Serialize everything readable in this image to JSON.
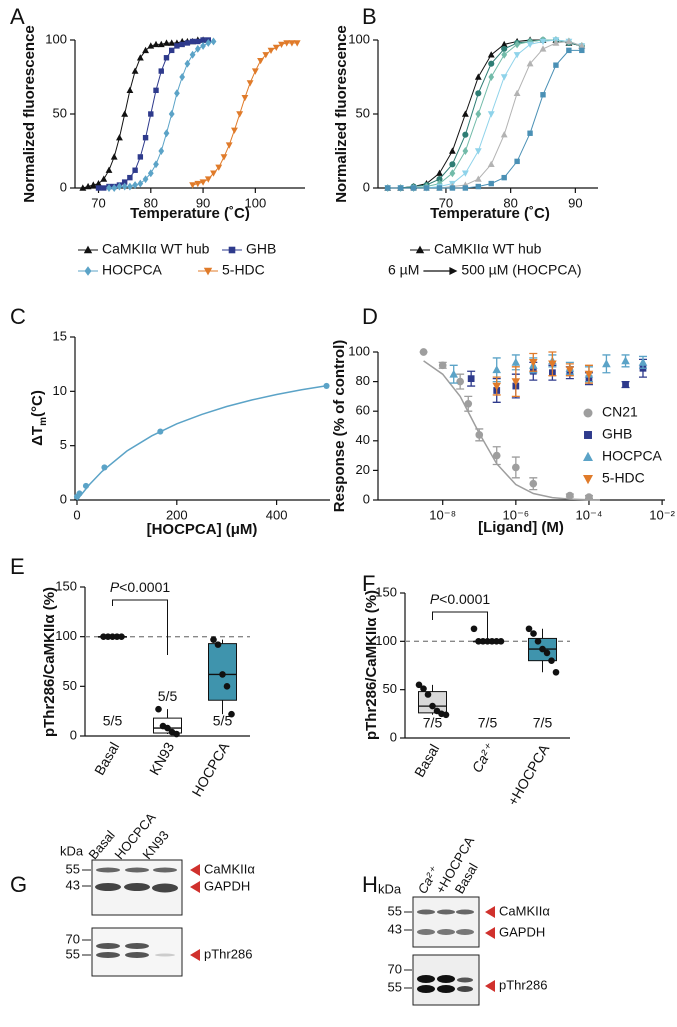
{
  "chart_data": [
    {
      "panel": "A",
      "type": "line",
      "ylabel": "Normalized fluorescence",
      "xlabel": "Temperature (˚C)",
      "xlim": [
        65.5,
        109.5
      ],
      "xticks": [
        70,
        80,
        90,
        100
      ],
      "ylim": [
        0,
        100
      ],
      "yticks": [
        0,
        50,
        100
      ],
      "series": [
        {
          "name": "CaMKIIα WT hub",
          "color": "#111111",
          "marker": "triangle",
          "x": [
            67,
            68,
            69,
            70,
            71,
            72,
            73,
            74,
            75,
            76,
            77,
            78,
            79,
            80,
            81,
            82,
            83,
            84,
            85,
            86,
            87,
            88,
            89,
            90
          ],
          "values": [
            0,
            1,
            2,
            3,
            6,
            12,
            21,
            34,
            50,
            66,
            79,
            88,
            93,
            96,
            97,
            97,
            98,
            98,
            98,
            99,
            99,
            99,
            100,
            100
          ]
        },
        {
          "name": "GHB",
          "color": "#2e3a8c",
          "marker": "square",
          "x": [
            70,
            71,
            72,
            73,
            74,
            75,
            76,
            77,
            78,
            79,
            80,
            81,
            82,
            83,
            84,
            85,
            86,
            87,
            88,
            89,
            90,
            91
          ],
          "values": [
            0,
            0,
            1,
            1,
            2,
            4,
            7,
            12,
            21,
            34,
            50,
            66,
            79,
            88,
            93,
            96,
            97,
            98,
            99,
            99,
            100,
            100
          ]
        },
        {
          "name": "HOCPCA",
          "color": "#5ba3c7",
          "marker": "diamond",
          "x": [
            72,
            73,
            74,
            75,
            76,
            77,
            78,
            79,
            80,
            81,
            82,
            83,
            84,
            85,
            86,
            87,
            88,
            89,
            90,
            91,
            92
          ],
          "values": [
            0,
            0,
            1,
            1,
            1,
            2,
            3,
            6,
            10,
            16,
            25,
            37,
            50,
            64,
            75,
            84,
            90,
            94,
            96,
            98,
            99
          ]
        },
        {
          "name": "5-HDC",
          "color": "#e07b2a",
          "marker": "triangle-down",
          "x": [
            88,
            89,
            90,
            91,
            92,
            93,
            94,
            95,
            96,
            97,
            98,
            99,
            100,
            101,
            102,
            103,
            104,
            105,
            106,
            107,
            108
          ],
          "values": [
            2,
            3,
            4,
            6,
            10,
            14,
            21,
            29,
            39,
            50,
            61,
            71,
            79,
            86,
            90,
            93,
            95,
            97,
            98,
            98,
            98
          ]
        }
      ]
    },
    {
      "panel": "B",
      "type": "line",
      "ylabel": "Normalized fluorescence",
      "xlabel": "Temperature (˚C)",
      "xlim": [
        59.5,
        93.5
      ],
      "xticks": [
        70,
        80,
        90
      ],
      "ylim": [
        0,
        100
      ],
      "yticks": [
        0,
        50,
        100
      ],
      "legend_range": {
        "from": "6 µM",
        "to": "500 µM (HOCPCA)"
      },
      "series": [
        {
          "name": "CaMKIIα WT hub",
          "color": "#111111",
          "marker": "triangle",
          "x": [
            61,
            63,
            65,
            67,
            69,
            71,
            73,
            75,
            77,
            79,
            81,
            83,
            85,
            87,
            89,
            91
          ],
          "values": [
            0,
            0,
            1,
            3,
            10,
            25,
            50,
            75,
            90,
            97,
            99,
            100,
            100,
            100,
            98,
            96
          ]
        },
        {
          "color": "#2e7d74",
          "marker": "circle",
          "x": [
            61,
            63,
            65,
            67,
            69,
            71,
            73,
            75,
            77,
            79,
            81,
            83,
            85,
            87,
            89,
            91
          ],
          "values": [
            0,
            0,
            1,
            2,
            6,
            16,
            36,
            64,
            84,
            94,
            98,
            99,
            100,
            100,
            98,
            96
          ]
        },
        {
          "color": "#72bba9",
          "marker": "diamond",
          "x": [
            61,
            63,
            65,
            67,
            69,
            71,
            73,
            75,
            77,
            79,
            81,
            83,
            85,
            87,
            89,
            91
          ],
          "values": [
            0,
            0,
            0,
            1,
            3,
            10,
            25,
            50,
            75,
            90,
            97,
            99,
            100,
            100,
            99,
            96
          ]
        },
        {
          "color": "#8fd3ea",
          "marker": "triangle-down",
          "x": [
            61,
            63,
            65,
            67,
            69,
            71,
            73,
            75,
            77,
            79,
            81,
            83,
            85,
            87,
            89,
            91
          ],
          "values": [
            0,
            0,
            0,
            0,
            1,
            3,
            10,
            25,
            50,
            75,
            90,
            97,
            99,
            100,
            99,
            96
          ]
        },
        {
          "color": "#b3b3b3",
          "marker": "triangle",
          "x": [
            61,
            63,
            65,
            67,
            69,
            71,
            73,
            75,
            77,
            79,
            81,
            83,
            85,
            87,
            89,
            91
          ],
          "values": [
            0,
            0,
            0,
            0,
            0,
            1,
            2,
            6,
            16,
            36,
            64,
            84,
            94,
            98,
            99,
            96
          ]
        },
        {
          "color": "#4a90b5",
          "marker": "square",
          "x": [
            61,
            63,
            65,
            67,
            69,
            71,
            73,
            75,
            77,
            79,
            81,
            83,
            85,
            87,
            89,
            91
          ],
          "values": [
            0,
            0,
            0,
            0,
            0,
            0,
            0,
            1,
            3,
            7,
            18,
            37,
            63,
            83,
            93,
            93
          ]
        }
      ]
    },
    {
      "panel": "C",
      "type": "scatter",
      "ylabel": {
        "main": "ΔT",
        "sub": "m",
        "rest": "(°C)"
      },
      "xlabel": "[HOCPCA] (μM)",
      "xlim": [
        -4,
        507
      ],
      "xticks": [
        0,
        200,
        400
      ],
      "ylim": [
        0,
        15
      ],
      "yticks": [
        0,
        5,
        10,
        15
      ],
      "color": "#5ba3c7",
      "marker": "circle",
      "x": [
        0,
        5,
        18,
        55,
        167,
        500
      ],
      "values": [
        0.3,
        0.6,
        1.3,
        3.0,
        6.3,
        10.5
      ],
      "curve": {
        "x": [
          0,
          25,
          50,
          100,
          150,
          200,
          250,
          300,
          350,
          400,
          450,
          500
        ],
        "values": [
          0,
          1.43,
          2.62,
          4.51,
          5.91,
          7.01,
          7.88,
          8.6,
          9.2,
          9.71,
          10.14,
          10.52
        ]
      }
    },
    {
      "panel": "D",
      "type": "scatter",
      "log_x": true,
      "ylabel": "Response (% of control)",
      "xlabel": "[Ligand] (M)",
      "xlim": [
        1.7e-10,
        0.012
      ],
      "xticks": [
        {
          "value": 1e-08,
          "label": "10⁻⁸"
        },
        {
          "value": 1e-06,
          "label": "10⁻⁶"
        },
        {
          "value": 0.0001,
          "label": "10⁻⁴"
        },
        {
          "value": 0.01,
          "label": "10⁻²"
        }
      ],
      "ylim": [
        0,
        100
      ],
      "yticks": [
        0,
        20,
        40,
        60,
        80,
        100
      ],
      "series": [
        {
          "name": "CN21",
          "color": "#9e9e9e",
          "marker": "circle",
          "x": [
            3e-09,
            1e-08,
            3e-08,
            5e-08,
            1e-07,
            3e-07,
            1e-06,
            3e-06,
            3e-05,
            0.0001
          ],
          "values": [
            100,
            91,
            80,
            65,
            44,
            30,
            22,
            11,
            3,
            2
          ],
          "errors": [
            0,
            2,
            5,
            5,
            4,
            6,
            7,
            4,
            1,
            1
          ],
          "curve": {
            "x": [
              3e-09,
              1e-08,
              3e-08,
              1e-07,
              3e-07,
              1e-06,
              3e-06,
              1e-05,
              3e-05,
              0.0001,
              0.0002
            ],
            "values": [
              94,
              85,
              70,
              45,
              24.5,
              10.5,
              4.4,
              1.6,
              0.6,
              0.2,
              0.1
            ]
          }
        },
        {
          "name": "GHB",
          "color": "#2e3a8c",
          "marker": "square",
          "x": [
            6e-08,
            3e-07,
            1e-06,
            3e-06,
            1e-05,
            3e-05,
            0.0001,
            0.001,
            0.003
          ],
          "values": [
            82,
            74,
            77,
            87,
            86,
            86,
            82,
            78,
            89
          ],
          "errors": [
            5,
            8,
            8,
            6,
            5,
            4,
            4,
            2,
            6
          ]
        },
        {
          "name": "HOCPCA",
          "color": "#5ba3c7",
          "marker": "triangle",
          "x": [
            2e-08,
            3e-07,
            1e-06,
            3e-06,
            1e-05,
            3e-05,
            0.0001,
            0.0003,
            0.001,
            0.003
          ],
          "values": [
            85,
            88,
            93,
            91,
            94,
            89,
            85,
            92,
            94,
            93
          ],
          "errors": [
            6,
            8,
            5,
            5,
            4,
            4,
            5,
            6,
            4,
            4
          ]
        },
        {
          "name": "5-HDC",
          "color": "#e07b2a",
          "marker": "triangle-down",
          "x": [
            3e-07,
            1e-06,
            3e-06,
            1e-05,
            3e-05,
            0.0001
          ],
          "values": [
            77,
            80,
            93,
            92,
            88,
            85
          ],
          "errors": [
            6,
            10,
            6,
            8,
            4,
            6
          ]
        }
      ]
    },
    {
      "panel": "E",
      "type": "box",
      "ylabel": "pThr286/CaMKIIα (%)",
      "ylim": [
        0,
        150
      ],
      "yticks": [
        0,
        50,
        100,
        150
      ],
      "reference": 100,
      "pvalue": {
        "symbol": "P",
        "text": "<0.0001"
      },
      "categories": [
        "Basal",
        "KN93",
        "HOCPCA"
      ],
      "count_labels": [
        "5/5",
        "5/5",
        "5/5"
      ],
      "boxes": [
        {
          "min": 100,
          "q1": 100,
          "median": 100,
          "q3": 100,
          "max": 100,
          "points": [
            100,
            100,
            100,
            100,
            100
          ],
          "color": "#ffffff"
        },
        {
          "min": 2,
          "q1": 3,
          "median": 8,
          "q3": 18,
          "max": 27,
          "points": [
            27,
            10,
            8,
            4,
            2
          ],
          "color": "#ffffff"
        },
        {
          "min": 22,
          "q1": 36,
          "median": 62,
          "q3": 93,
          "max": 97,
          "points": [
            97,
            92,
            62,
            50,
            22
          ],
          "color": "#3f94ad"
        }
      ]
    },
    {
      "panel": "F",
      "type": "box",
      "ylabel": "pThr286/CaMKIIα (%)",
      "ylim": [
        0,
        150
      ],
      "yticks": [
        0,
        50,
        100,
        150
      ],
      "reference": 100,
      "pvalue": {
        "symbol": "P",
        "text": "<0.0001"
      },
      "categories": [
        "Basal",
        "Ca²⁺",
        "+HOCPCA"
      ],
      "count_labels": [
        "7/5",
        "7/5",
        "7/5"
      ],
      "boxes": [
        {
          "min": 24,
          "q1": 26,
          "median": 33,
          "q3": 48,
          "max": 55,
          "points": [
            55,
            51,
            45,
            33,
            28,
            25,
            24
          ],
          "color": "#d9d9d9"
        },
        {
          "min": 100,
          "q1": 100,
          "median": 100,
          "q3": 100,
          "max": 113,
          "points": [
            113,
            100,
            100,
            100,
            100,
            100,
            100
          ],
          "color": "#ffffff"
        },
        {
          "min": 68,
          "q1": 80,
          "median": 92,
          "q3": 103,
          "max": 113,
          "points": [
            113,
            108,
            100,
            92,
            88,
            80,
            68
          ],
          "color": "#3f94ad"
        }
      ]
    }
  ],
  "blots": [
    {
      "panel": "G",
      "kda": "kDa",
      "lanes": [
        "Basal",
        "HOCPCA",
        "KN93"
      ],
      "markers": [
        55,
        43,
        70,
        55
      ],
      "bands": [
        "CaMKIIα",
        "GAPDH",
        "pThr286"
      ]
    },
    {
      "panel": "H",
      "kda": "kDa",
      "lanes": [
        "Ca²⁺",
        "+HOCPCA",
        "Basal"
      ],
      "markers": [
        55,
        43,
        70,
        55
      ],
      "bands": [
        "CaMKIIα",
        "GAPDH",
        "pThr286"
      ]
    }
  ]
}
